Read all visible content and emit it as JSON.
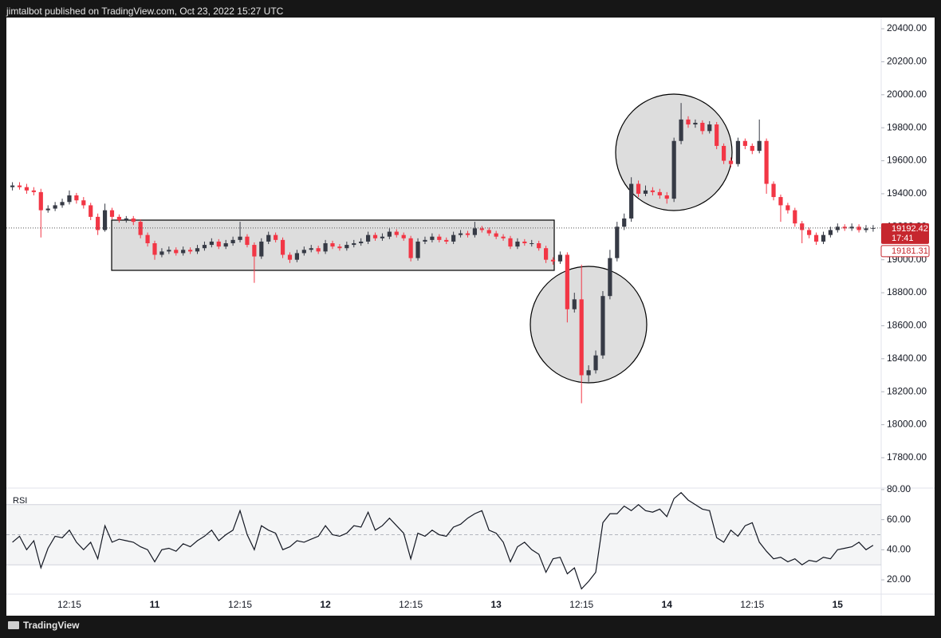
{
  "header": {
    "text": "jimtalbot published on TradingView.com, Oct 23, 2022 15:27 UTC"
  },
  "footer": {
    "brand": "TradingView"
  },
  "chart_data": [
    {
      "type": "candlestick",
      "categories": [
        null,
        null,
        null,
        null,
        null,
        null,
        null,
        null,
        "12:15",
        null,
        null,
        null,
        null,
        null,
        null,
        null,
        null,
        null,
        null,
        null,
        "11",
        null,
        null,
        null,
        null,
        null,
        null,
        null,
        null,
        null,
        null,
        null,
        "12:15",
        null,
        null,
        null,
        null,
        null,
        null,
        null,
        null,
        null,
        null,
        null,
        "12",
        null,
        null,
        null,
        null,
        null,
        null,
        null,
        null,
        null,
        null,
        null,
        "12:15",
        null,
        null,
        null,
        null,
        null,
        null,
        null,
        null,
        null,
        null,
        null,
        "13",
        null,
        null,
        null,
        null,
        null,
        null,
        null,
        null,
        null,
        null,
        null,
        "12:15",
        null,
        null,
        null,
        null,
        null,
        null,
        null,
        null,
        null,
        null,
        null,
        "14",
        null,
        null,
        null,
        null,
        null,
        null,
        null,
        null,
        null,
        null,
        null,
        "12:15",
        null,
        null,
        null,
        null,
        null,
        null,
        null,
        null,
        null,
        null,
        null,
        "15",
        null,
        null,
        null,
        null,
        null
      ],
      "open": [
        19440,
        19450,
        19440,
        19420,
        19410,
        19300,
        19310,
        19330,
        19350,
        19390,
        19360,
        19330,
        19260,
        19180,
        19300,
        19260,
        19240,
        19250,
        19230,
        19150,
        19100,
        19030,
        19050,
        19060,
        19040,
        19060,
        19050,
        19070,
        19090,
        19110,
        19080,
        19100,
        19120,
        19140,
        19090,
        19020,
        19110,
        19150,
        19120,
        19030,
        19000,
        19040,
        19060,
        19070,
        19050,
        19100,
        19080,
        19070,
        19090,
        19100,
        19110,
        19150,
        19130,
        19140,
        19170,
        19150,
        19130,
        19010,
        19110,
        19120,
        19140,
        19120,
        19110,
        19150,
        19160,
        19150,
        19190,
        19180,
        19160,
        19140,
        19130,
        19080,
        19110,
        19100,
        19100,
        19070,
        19000,
        18990,
        19030,
        18700,
        18760,
        18300,
        18330,
        18420,
        18780,
        19010,
        19200,
        19250,
        19460,
        19400,
        19420,
        19410,
        19390,
        19370,
        19720,
        19850,
        19820,
        19830,
        19780,
        19820,
        19690,
        19600,
        19580,
        19720,
        19690,
        19660,
        19720,
        19460,
        19380,
        19330,
        19300,
        19220,
        19180,
        19150,
        19110,
        19150,
        19180,
        19200,
        19190,
        19200,
        19180,
        19190
      ],
      "high": [
        19470,
        19470,
        19460,
        19440,
        19430,
        19330,
        19350,
        19370,
        19420,
        19405,
        19380,
        19345,
        19280,
        19340,
        19315,
        19275,
        19265,
        19265,
        19245,
        19165,
        19115,
        19070,
        19080,
        19075,
        19080,
        19075,
        19090,
        19110,
        19130,
        19125,
        19120,
        19140,
        19230,
        19155,
        19105,
        19130,
        19170,
        19165,
        19135,
        19045,
        19060,
        19080,
        19090,
        19085,
        19120,
        19115,
        19095,
        19110,
        19120,
        19130,
        19170,
        19165,
        19160,
        19190,
        19185,
        19165,
        19145,
        19130,
        19140,
        19160,
        19155,
        19135,
        19170,
        19180,
        19175,
        19230,
        19205,
        19195,
        19175,
        19155,
        19145,
        19130,
        19125,
        19120,
        19115,
        19085,
        19015,
        19050,
        19045,
        18800,
        18970,
        18360,
        18450,
        18810,
        19060,
        19230,
        19280,
        19500,
        19480,
        19450,
        19440,
        19430,
        19410,
        19740,
        19950,
        19870,
        19850,
        19845,
        19840,
        19835,
        19705,
        19620,
        19740,
        19735,
        19705,
        19850,
        19735,
        19475,
        19395,
        19345,
        19315,
        19235,
        19195,
        19165,
        19170,
        19200,
        19220,
        19215,
        19220,
        19215,
        19210,
        19210
      ],
      "low": [
        19420,
        19425,
        19400,
        19390,
        19135,
        19285,
        19295,
        19315,
        19335,
        19340,
        19310,
        19240,
        19150,
        19170,
        19245,
        19225,
        19225,
        19210,
        19130,
        19080,
        19000,
        19015,
        19035,
        19025,
        19025,
        19035,
        19035,
        19055,
        19075,
        19065,
        19065,
        19085,
        19105,
        19075,
        18860,
        19005,
        19095,
        19105,
        19010,
        18980,
        18985,
        19025,
        19045,
        19035,
        19035,
        19065,
        19055,
        19055,
        19075,
        19085,
        19095,
        19115,
        19115,
        19125,
        19135,
        19115,
        18990,
        18995,
        19095,
        19105,
        19105,
        19095,
        19095,
        19135,
        19135,
        19135,
        19165,
        19145,
        19125,
        19115,
        19065,
        19065,
        19085,
        19080,
        19055,
        18980,
        18970,
        18975,
        18620,
        18680,
        18130,
        18260,
        18310,
        18400,
        18760,
        18990,
        19180,
        19230,
        19380,
        19385,
        19390,
        19370,
        19340,
        19350,
        19700,
        19800,
        19800,
        19760,
        19765,
        19670,
        19580,
        19560,
        19565,
        19670,
        19640,
        19645,
        19400,
        19360,
        19230,
        19280,
        19200,
        19100,
        19130,
        19090,
        19095,
        19135,
        19165,
        19175,
        19175,
        19165,
        19165,
        19170
      ],
      "close": [
        19450,
        19440,
        19420,
        19410,
        19300,
        19310,
        19330,
        19350,
        19390,
        19360,
        19330,
        19260,
        19180,
        19300,
        19260,
        19240,
        19250,
        19230,
        19150,
        19100,
        19030,
        19050,
        19060,
        19040,
        19060,
        19050,
        19070,
        19090,
        19110,
        19080,
        19100,
        19120,
        19140,
        19090,
        19020,
        19110,
        19150,
        19120,
        19030,
        19000,
        19040,
        19060,
        19070,
        19050,
        19100,
        19080,
        19070,
        19090,
        19100,
        19110,
        19150,
        19130,
        19140,
        19170,
        19150,
        19130,
        19010,
        19110,
        19120,
        19140,
        19120,
        19110,
        19150,
        19160,
        19150,
        19190,
        19180,
        19160,
        19140,
        19130,
        19080,
        19110,
        19100,
        19100,
        19070,
        19000,
        18990,
        19030,
        18700,
        18760,
        18300,
        18330,
        18420,
        18780,
        19010,
        19200,
        19250,
        19460,
        19400,
        19420,
        19410,
        19390,
        19370,
        19720,
        19850,
        19820,
        19830,
        19780,
        19820,
        19690,
        19600,
        19580,
        19720,
        19690,
        19660,
        19720,
        19460,
        19380,
        19330,
        19300,
        19220,
        19180,
        19150,
        19110,
        19150,
        19180,
        19200,
        19190,
        19200,
        19180,
        19190,
        19192.42
      ],
      "up_color": "#363a45",
      "down_color": "#f23645",
      "ylim": [
        17616,
        20468
      ],
      "yticks": [
        {
          "value": 17800,
          "label": "17800.00"
        },
        {
          "value": 18000,
          "label": "18000.00"
        },
        {
          "value": 18200,
          "label": "18200.00"
        },
        {
          "value": 18400,
          "label": "18400.00"
        },
        {
          "value": 18600,
          "label": "18600.00"
        },
        {
          "value": 18800,
          "label": "18800.00"
        },
        {
          "value": 19000,
          "label": "19000.00"
        },
        {
          "value": 19200,
          "label": "19200.00"
        },
        {
          "value": 19400,
          "label": "19400.00"
        },
        {
          "value": 19600,
          "label": "19600.00"
        },
        {
          "value": 19800,
          "label": "19800.00"
        },
        {
          "value": 20000,
          "label": "20000.00"
        },
        {
          "value": 20200,
          "label": "20200.00"
        },
        {
          "value": 20400,
          "label": "20400.00"
        }
      ],
      "last_price": 19192.42,
      "countdown": "17:41",
      "ref_price": 19181.31
    },
    {
      "type": "line",
      "title": "RSI",
      "color": "#131722",
      "values": [
        45,
        49,
        40,
        46,
        28,
        41,
        49,
        48,
        53,
        45,
        40,
        45,
        34,
        56,
        45,
        47,
        46,
        45,
        42,
        40,
        32,
        40,
        41,
        39,
        44,
        42,
        46,
        49,
        53,
        46,
        50,
        53,
        66,
        50,
        40,
        56,
        53,
        51,
        40,
        42,
        46,
        45,
        47,
        49,
        56,
        50,
        49,
        51,
        56,
        55,
        65,
        53,
        56,
        61,
        56,
        51,
        34,
        51,
        49,
        53,
        50,
        49,
        55,
        57,
        61,
        64,
        66,
        53,
        51,
        45,
        32,
        42,
        45,
        40,
        37,
        25,
        34,
        35,
        24,
        28,
        14,
        19,
        25,
        58,
        64,
        64,
        69,
        66,
        70,
        66,
        65,
        67,
        62,
        74,
        78,
        73,
        70,
        67,
        66,
        48,
        45,
        53,
        49,
        56,
        58,
        45,
        39,
        34,
        35,
        32,
        34,
        30,
        33,
        32,
        35,
        34,
        40,
        41,
        42,
        45,
        40,
        43
      ],
      "ylim": [
        10.5,
        81
      ],
      "yticks": [
        {
          "value": 20,
          "label": "20.00"
        },
        {
          "value": 40,
          "label": "40.00"
        },
        {
          "value": 60,
          "label": "60.00"
        },
        {
          "value": 80,
          "label": "80.00"
        }
      ],
      "band": [
        30,
        70
      ],
      "midline": 50
    }
  ]
}
